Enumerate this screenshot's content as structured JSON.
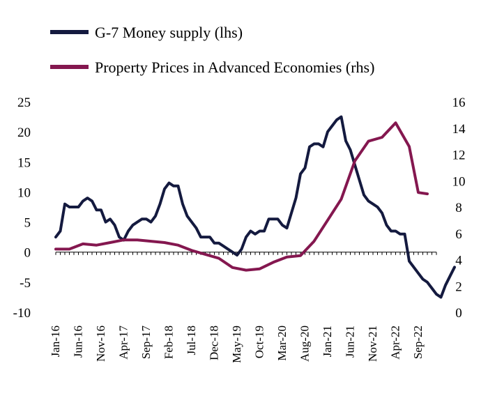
{
  "chart_data": {
    "type": "line",
    "title": "",
    "xlabel": "",
    "ylabel": "",
    "x_tick_labels": [
      "Jan-16",
      "Jun-16",
      "Nov-16",
      "Apr-17",
      "Sep-17",
      "Feb-18",
      "Jul-18",
      "Dec-18",
      "May-19",
      "Oct-19",
      "Mar-20",
      "Aug-20",
      "Jan-21",
      "Jun-21",
      "Nov-21",
      "Apr-22",
      "Sep-22"
    ],
    "x_range": [
      "Jan-16",
      "Jan-23"
    ],
    "y_left": {
      "ylim": [
        -10,
        25
      ],
      "ticks": [
        "-10",
        "-5",
        "0",
        "5",
        "10",
        "15",
        "20",
        "25"
      ]
    },
    "y_right": {
      "ylim": [
        0,
        16
      ],
      "ticks": [
        "0",
        "2",
        "4",
        "6",
        "8",
        "10",
        "12",
        "14",
        "16"
      ]
    },
    "grid": false,
    "legend_position": "top-left",
    "series": [
      {
        "name": "G-7 Money supply (lhs)",
        "axis": "left",
        "color": "#141a3f",
        "points": [
          [
            "Jan-16",
            2.5
          ],
          [
            "Feb-16",
            3.5
          ],
          [
            "Mar-16",
            8
          ],
          [
            "Apr-16",
            7.5
          ],
          [
            "May-16",
            7.5
          ],
          [
            "Jun-16",
            7.5
          ],
          [
            "Jul-16",
            8.5
          ],
          [
            "Aug-16",
            9
          ],
          [
            "Sep-16",
            8.5
          ],
          [
            "Oct-16",
            7
          ],
          [
            "Nov-16",
            7
          ],
          [
            "Dec-16",
            5
          ],
          [
            "Jan-17",
            5.5
          ],
          [
            "Feb-17",
            4.5
          ],
          [
            "Mar-17",
            2.5
          ],
          [
            "Apr-17",
            2
          ],
          [
            "May-17",
            3.5
          ],
          [
            "Jun-17",
            4.5
          ],
          [
            "Jul-17",
            5
          ],
          [
            "Aug-17",
            5.5
          ],
          [
            "Sep-17",
            5.5
          ],
          [
            "Oct-17",
            5
          ],
          [
            "Nov-17",
            6
          ],
          [
            "Dec-17",
            8
          ],
          [
            "Jan-18",
            10.5
          ],
          [
            "Feb-18",
            11.5
          ],
          [
            "Mar-18",
            11
          ],
          [
            "Apr-18",
            11
          ],
          [
            "May-18",
            8
          ],
          [
            "Jun-18",
            6
          ],
          [
            "Jul-18",
            5
          ],
          [
            "Aug-18",
            4
          ],
          [
            "Sep-18",
            2.5
          ],
          [
            "Oct-18",
            2.5
          ],
          [
            "Nov-18",
            2.5
          ],
          [
            "Dec-18",
            1.5
          ],
          [
            "Jan-19",
            1.5
          ],
          [
            "Feb-19",
            1
          ],
          [
            "Mar-19",
            0.5
          ],
          [
            "Apr-19",
            0
          ],
          [
            "May-19",
            -0.5
          ],
          [
            "Jun-19",
            0.5
          ],
          [
            "Jul-19",
            2.5
          ],
          [
            "Aug-19",
            3.5
          ],
          [
            "Sep-19",
            3
          ],
          [
            "Oct-19",
            3.5
          ],
          [
            "Nov-19",
            3.5
          ],
          [
            "Dec-19",
            5.5
          ],
          [
            "Jan-20",
            5.5
          ],
          [
            "Feb-20",
            5.5
          ],
          [
            "Mar-20",
            4.5
          ],
          [
            "Apr-20",
            4
          ],
          [
            "May-20",
            6.5
          ],
          [
            "Jun-20",
            9
          ],
          [
            "Jul-20",
            13
          ],
          [
            "Aug-20",
            14
          ],
          [
            "Sep-20",
            17.5
          ],
          [
            "Oct-20",
            18
          ],
          [
            "Nov-20",
            18
          ],
          [
            "Dec-20",
            17.5
          ],
          [
            "Jan-21",
            20
          ],
          [
            "Feb-21",
            21
          ],
          [
            "Mar-21",
            22
          ],
          [
            "Apr-21",
            22.5
          ],
          [
            "May-21",
            18.5
          ],
          [
            "Jun-21",
            17
          ],
          [
            "Jul-21",
            14.5
          ],
          [
            "Aug-21",
            12
          ],
          [
            "Sep-21",
            9.5
          ],
          [
            "Oct-21",
            8.5
          ],
          [
            "Nov-21",
            8
          ],
          [
            "Dec-21",
            7.5
          ],
          [
            "Jan-22",
            6.5
          ],
          [
            "Feb-22",
            4.5
          ],
          [
            "Mar-22",
            3.5
          ],
          [
            "Apr-22",
            3.5
          ],
          [
            "May-22",
            3
          ],
          [
            "Jun-22",
            3
          ],
          [
            "Jul-22",
            -1.5
          ],
          [
            "Aug-22",
            -2.5
          ],
          [
            "Sep-22",
            -3.5
          ],
          [
            "Oct-22",
            -4.5
          ],
          [
            "Nov-22",
            -5
          ],
          [
            "Dec-22",
            -6
          ],
          [
            "Jan-23",
            -7
          ],
          [
            "Feb-23",
            -7.5
          ],
          [
            "Mar-23",
            -5.5
          ],
          [
            "Apr-23",
            -4
          ],
          [
            "May-23",
            -2.5
          ]
        ]
      },
      {
        "name": "Property Prices in Advanced Economies (rhs)",
        "axis": "right",
        "color": "#84174f",
        "points": [
          [
            "Jan-16",
            4.8
          ],
          [
            "Apr-16",
            4.8
          ],
          [
            "Jul-16",
            5.2
          ],
          [
            "Oct-16",
            5.1
          ],
          [
            "Jan-17",
            5.3
          ],
          [
            "Apr-17",
            5.5
          ],
          [
            "Jul-17",
            5.5
          ],
          [
            "Oct-17",
            5.4
          ],
          [
            "Jan-18",
            5.3
          ],
          [
            "Apr-18",
            5.1
          ],
          [
            "Jul-18",
            4.7
          ],
          [
            "Oct-18",
            4.4
          ],
          [
            "Jan-19",
            4.1
          ],
          [
            "Apr-19",
            3.4
          ],
          [
            "Jul-19",
            3.2
          ],
          [
            "Oct-19",
            3.3
          ],
          [
            "Jan-20",
            3.8
          ],
          [
            "Apr-20",
            4.2
          ],
          [
            "Jul-20",
            4.3
          ],
          [
            "Oct-20",
            5.4
          ],
          [
            "Jan-21",
            7
          ],
          [
            "Apr-21",
            8.6
          ],
          [
            "Jul-21",
            11.5
          ],
          [
            "Oct-21",
            13
          ],
          [
            "Jan-22",
            13.3
          ],
          [
            "Apr-22",
            14.4
          ],
          [
            "Jul-22",
            12.6
          ],
          [
            "Sep-22",
            9.1
          ],
          [
            "Nov-22",
            9
          ]
        ]
      }
    ]
  }
}
